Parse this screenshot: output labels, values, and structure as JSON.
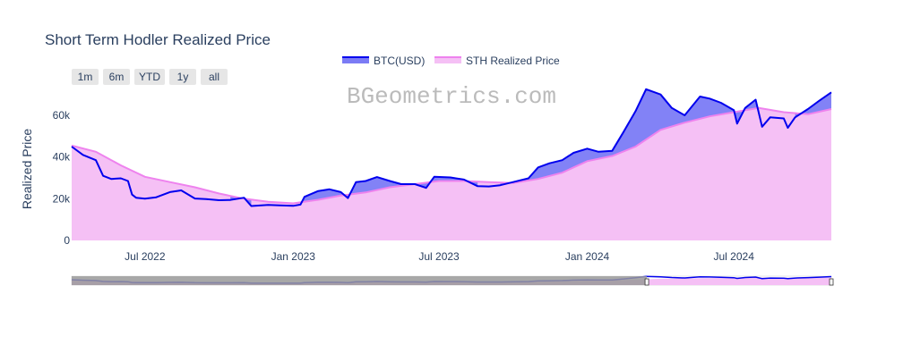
{
  "title": "Short Term Hodler Realized Price",
  "watermark": "BGeometrics.com",
  "range_buttons": [
    "1m",
    "6m",
    "YTD",
    "1y",
    "all"
  ],
  "colors": {
    "btc_line": "#0000ee",
    "btc_fill": "#7b7bf5",
    "sth_line": "#ee82ee",
    "sth_fill": "#f5c0f5",
    "button_bg": "#e6e6e6",
    "text": "#2a3f5f",
    "watermark": "#bbbbbb",
    "slider_mask": "#999999"
  },
  "chart_data": {
    "type": "area",
    "title": "Short Term Hodler Realized Price",
    "ylabel": "Realized Price",
    "xlabel": "",
    "ylim": [
      0,
      75000
    ],
    "xlim": [
      "2022-04-01",
      "2024-10-30"
    ],
    "y_ticks": [
      0,
      20000,
      40000,
      60000
    ],
    "y_tick_labels": [
      "0",
      "20k",
      "40k",
      "60k"
    ],
    "x_ticks": [
      "2022-07-01",
      "2023-01-01",
      "2023-07-01",
      "2024-01-01",
      "2024-07-01"
    ],
    "x_tick_labels": [
      "Jul 2022",
      "Jan 2023",
      "Jul 2023",
      "Jan 2024",
      "Jul 2024"
    ],
    "grid": false,
    "legend": {
      "position": "top-center",
      "entries": [
        "BTC(USD)",
        "STH Realized Price"
      ]
    },
    "range_slider": {
      "selected_start": "2024-03-15",
      "selected_end": "2024-10-30"
    },
    "series": [
      {
        "name": "BTC(USD)",
        "x": [
          "2022-04-01",
          "2022-04-15",
          "2022-05-01",
          "2022-05-10",
          "2022-05-20",
          "2022-06-01",
          "2022-06-10",
          "2022-06-15",
          "2022-06-20",
          "2022-07-01",
          "2022-07-15",
          "2022-08-01",
          "2022-08-15",
          "2022-09-01",
          "2022-09-15",
          "2022-10-01",
          "2022-10-15",
          "2022-11-01",
          "2022-11-10",
          "2022-12-01",
          "2022-12-15",
          "2023-01-01",
          "2023-01-10",
          "2023-01-15",
          "2023-02-01",
          "2023-02-15",
          "2023-03-01",
          "2023-03-10",
          "2023-03-20",
          "2023-04-01",
          "2023-04-15",
          "2023-05-01",
          "2023-05-15",
          "2023-06-01",
          "2023-06-15",
          "2023-06-25",
          "2023-07-15",
          "2023-08-01",
          "2023-08-18",
          "2023-09-01",
          "2023-09-15",
          "2023-10-01",
          "2023-10-20",
          "2023-11-01",
          "2023-11-15",
          "2023-12-01",
          "2023-12-15",
          "2024-01-01",
          "2024-01-15",
          "2024-02-01",
          "2024-02-15",
          "2024-03-01",
          "2024-03-14",
          "2024-04-01",
          "2024-04-15",
          "2024-05-01",
          "2024-05-20",
          "2024-06-01",
          "2024-06-15",
          "2024-07-01",
          "2024-07-05",
          "2024-07-15",
          "2024-07-28",
          "2024-08-05",
          "2024-08-15",
          "2024-09-01",
          "2024-09-06",
          "2024-09-15",
          "2024-10-01",
          "2024-10-15",
          "2024-10-30"
        ],
        "values": [
          45000,
          41000,
          38500,
          31000,
          29500,
          29800,
          28500,
          22000,
          20500,
          20000,
          20700,
          23200,
          24000,
          20100,
          19800,
          19300,
          19400,
          20500,
          16500,
          17000,
          16800,
          16600,
          17200,
          20900,
          23700,
          24500,
          23200,
          20300,
          28000,
          28500,
          30400,
          28500,
          27000,
          27000,
          25200,
          30500,
          30200,
          29200,
          26000,
          25900,
          26500,
          28000,
          29800,
          35000,
          37000,
          38500,
          42000,
          44000,
          42500,
          43000,
          52000,
          62000,
          72500,
          70000,
          63500,
          60000,
          69000,
          68000,
          66000,
          62500,
          56000,
          63500,
          67500,
          54500,
          59000,
          58500,
          54000,
          59000,
          63000,
          67000,
          71000
        ]
      },
      {
        "name": "STH Realized Price",
        "x": [
          "2022-04-01",
          "2022-05-01",
          "2022-06-01",
          "2022-07-01",
          "2022-08-01",
          "2022-09-01",
          "2022-10-01",
          "2022-11-01",
          "2022-12-01",
          "2023-01-01",
          "2023-02-01",
          "2023-03-01",
          "2023-04-01",
          "2023-05-01",
          "2023-06-01",
          "2023-07-01",
          "2023-08-01",
          "2023-09-01",
          "2023-10-01",
          "2023-11-01",
          "2023-12-01",
          "2024-01-01",
          "2024-02-01",
          "2024-03-01",
          "2024-04-01",
          "2024-05-01",
          "2024-06-01",
          "2024-07-01",
          "2024-08-01",
          "2024-09-01",
          "2024-10-01",
          "2024-10-30"
        ],
        "values": [
          45500,
          42500,
          36000,
          30500,
          28000,
          25500,
          22500,
          20000,
          18500,
          17800,
          19500,
          21500,
          23000,
          25500,
          27000,
          28500,
          28500,
          28000,
          27500,
          29500,
          32500,
          38000,
          40500,
          45000,
          53000,
          56500,
          59500,
          61500,
          63500,
          61500,
          60500,
          63000
        ]
      }
    ]
  }
}
